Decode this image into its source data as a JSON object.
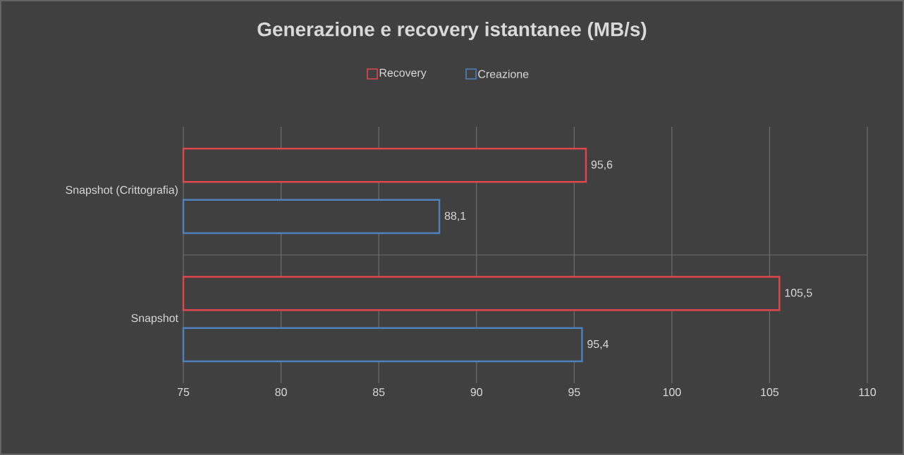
{
  "chart_data": {
    "type": "bar",
    "orientation": "horizontal",
    "title": "Generazione e recovery istantanee (MB/s)",
    "categories": [
      "Snapshot (Crittografia)",
      "Snapshot"
    ],
    "series": [
      {
        "name": "Recovery",
        "color": "#e0474c",
        "values": [
          95.6,
          105.5
        ],
        "value_labels": [
          "95,6",
          "105,5"
        ]
      },
      {
        "name": "Creazione",
        "color": "#4f81bd",
        "values": [
          88.1,
          95.4
        ],
        "value_labels": [
          "88,1",
          "95,4"
        ]
      }
    ],
    "xlim": [
      75,
      110
    ],
    "xticks": [
      75,
      80,
      85,
      90,
      95,
      100,
      105,
      110
    ],
    "grid": true,
    "legend": "top"
  }
}
